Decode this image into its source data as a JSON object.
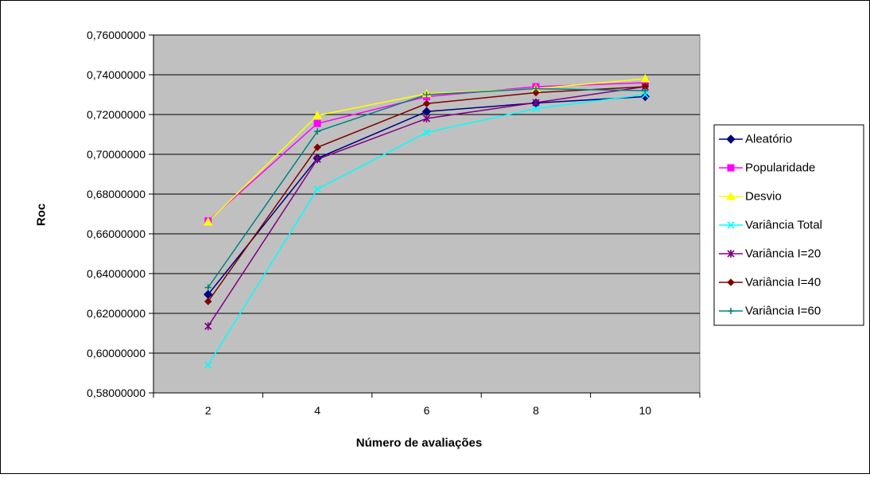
{
  "chart_data": {
    "type": "line",
    "title": "",
    "xlabel": "Número de avaliações",
    "ylabel": "Roc",
    "x": [
      2,
      4,
      6,
      8,
      10
    ],
    "x_tick_labels": [
      "2",
      "4",
      "6",
      "8",
      "10"
    ],
    "ylim": [
      0.58,
      0.76
    ],
    "y_ticks": [
      0.58,
      0.6,
      0.62,
      0.64,
      0.66,
      0.68,
      0.7,
      0.72,
      0.74,
      0.76
    ],
    "y_tick_labels": [
      "0,58000000",
      "0,60000000",
      "0,62000000",
      "0,64000000",
      "0,66000000",
      "0,68000000",
      "0,70000000",
      "0,72000000",
      "0,74000000",
      "0,76000000"
    ],
    "grid": "horizontal",
    "plot_background": "#C0C0C0",
    "legend_position": "right",
    "series": [
      {
        "name": "Aleatório",
        "color": "#000080",
        "marker": "diamond",
        "values": [
          0.6295,
          0.698,
          0.7215,
          0.7258,
          0.729
        ]
      },
      {
        "name": "Popularidade",
        "color": "#FF00FF",
        "marker": "square",
        "values": [
          0.6665,
          0.7155,
          0.729,
          0.734,
          0.736
        ]
      },
      {
        "name": "Desvio",
        "color": "#FFFF00",
        "marker": "triangle",
        "values": [
          0.666,
          0.7195,
          0.7305,
          0.733,
          0.738
        ]
      },
      {
        "name": "Variância Total",
        "color": "#00FFFF",
        "marker": "x",
        "values": [
          0.594,
          0.6825,
          0.711,
          0.723,
          0.73
        ]
      },
      {
        "name": "Variância I=20",
        "color": "#800080",
        "marker": "star",
        "values": [
          0.6135,
          0.6975,
          0.718,
          0.726,
          0.734
        ]
      },
      {
        "name": "Variância I=40",
        "color": "#800000",
        "marker": "circle",
        "values": [
          0.626,
          0.7035,
          0.7255,
          0.731,
          0.734
        ]
      },
      {
        "name": "Variância  I=60",
        "color": "#008080",
        "marker": "plus",
        "values": [
          0.633,
          0.7115,
          0.73,
          0.733,
          0.732
        ]
      }
    ]
  }
}
